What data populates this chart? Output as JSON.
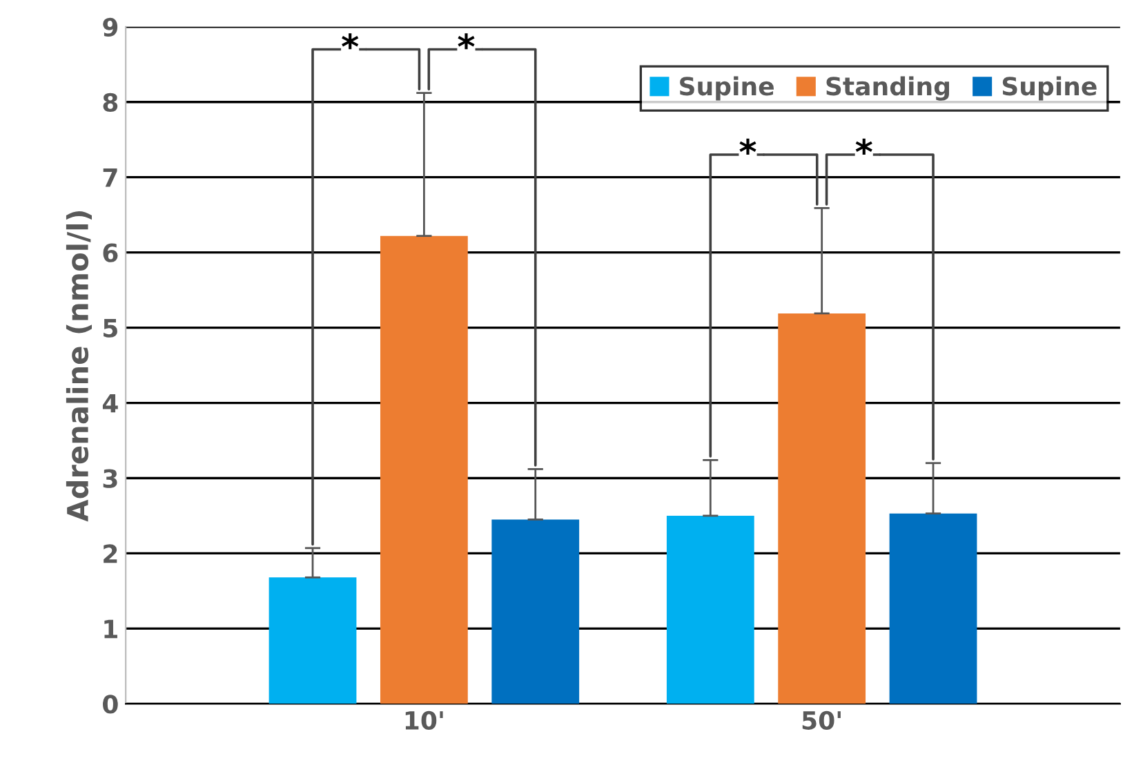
{
  "chart_data": {
    "type": "bar",
    "ylabel": "Adrenaline (nmol/l)",
    "categories": [
      "10'",
      "50'"
    ],
    "series": [
      {
        "name": "Supine",
        "color": "#00b0f0",
        "values": [
          1.68,
          2.5
        ],
        "errors": [
          [
            1.68,
            2.07
          ],
          [
            2.5,
            3.24
          ]
        ]
      },
      {
        "name": "Standing",
        "color": "#ed7d31",
        "values": [
          6.22,
          5.19
        ],
        "errors": [
          [
            6.22,
            8.12
          ],
          [
            5.19,
            6.59
          ]
        ]
      },
      {
        "name": "Supine",
        "color": "#0070c0",
        "values": [
          2.45,
          2.53
        ],
        "errors": [
          [
            2.45,
            3.12
          ],
          [
            2.53,
            3.2
          ]
        ]
      }
    ],
    "ylim": [
      0,
      9
    ],
    "yticks": [
      0,
      1,
      2,
      3,
      4,
      5,
      6,
      7,
      8,
      9
    ],
    "grid": "y",
    "legend": "top right",
    "annotations": [
      {
        "text": "*",
        "y": 8.7
      },
      {
        "text": "*",
        "y": 8.7
      },
      {
        "text": "*",
        "y": 7.3
      },
      {
        "text": "*",
        "y": 7.3
      }
    ]
  }
}
